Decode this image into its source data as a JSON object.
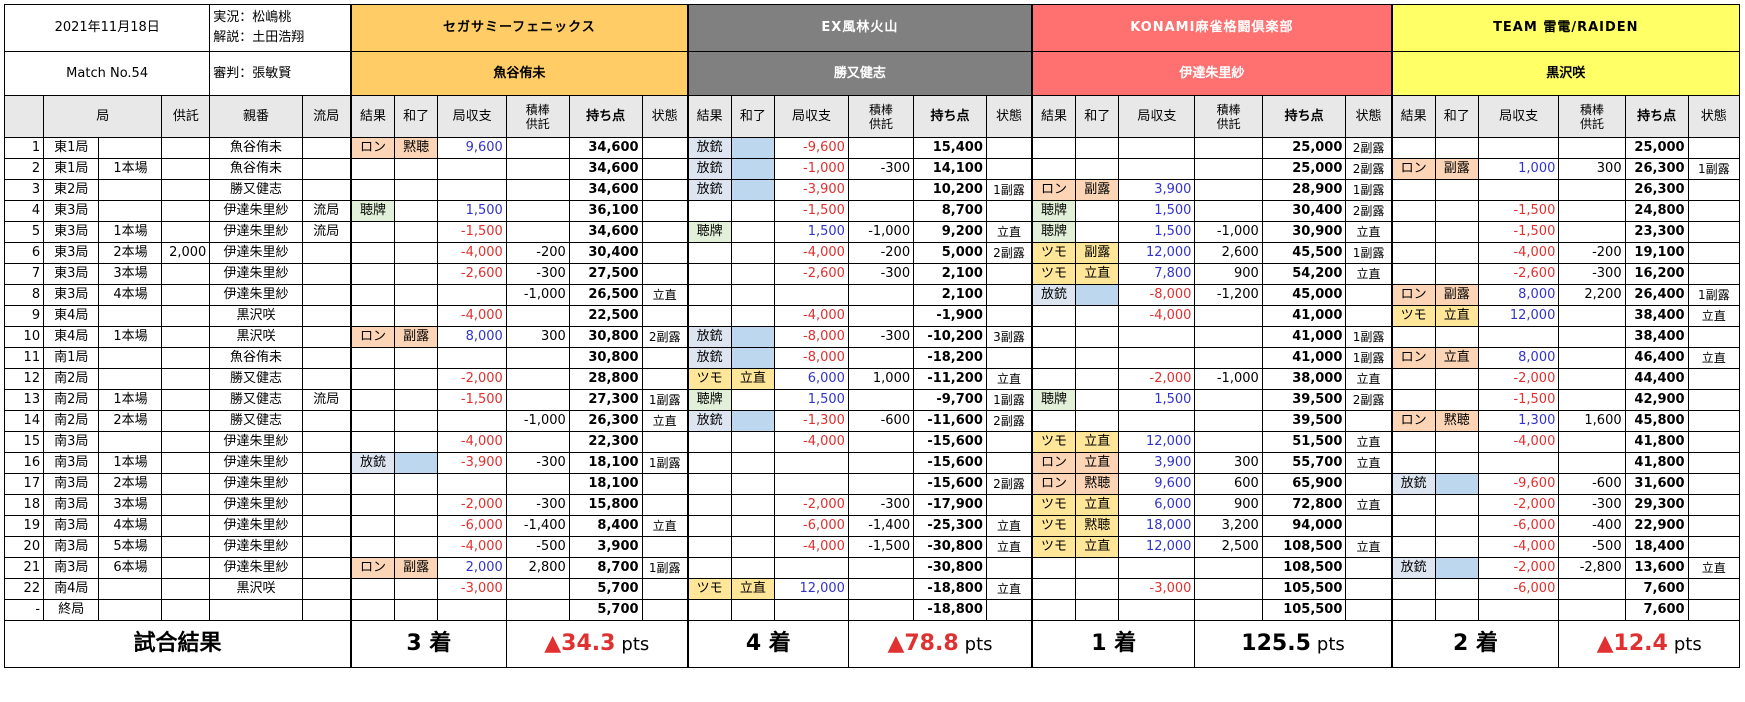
{
  "header": {
    "date": "2021年11月18日",
    "match_no": "Match No.54",
    "commentary": "実況：松嶋桃",
    "analysis": "解説：土田浩翔",
    "referee": "審判：張敏賢"
  },
  "teams": [
    {
      "name": "セガサミーフェニックス",
      "player": "魚谷侑未",
      "header_color": "#ffcc66",
      "player_color": "#ffcc66",
      "rank": "3 着",
      "score": "▲34.3",
      "unit": "pts"
    },
    {
      "name": "EX風林火山",
      "player": "勝又健志",
      "header_color": "#808080",
      "player_color": "#808080",
      "rank": "4 着",
      "score": "▲78.8",
      "unit": "pts"
    },
    {
      "name": "KONAMI麻雀格闘倶楽部",
      "player": "伊達朱里紗",
      "header_color": "#ff7070",
      "player_color": "#ff7070",
      "rank": "1 着",
      "score": "125.5",
      "unit": "pts"
    },
    {
      "name": "TEAM 雷電/RAIDEN",
      "player": "黒沢咲",
      "header_color": "#ffff66",
      "player_color": "#ffff66",
      "rank": "2 着",
      "score": "▲12.4",
      "unit": "pts"
    }
  ],
  "columns": {
    "kyoku": "局",
    "kyotaku": "供託",
    "oya": "親番",
    "ryukyoku": "流局",
    "result": "結果",
    "agari": "和了",
    "shushi": "局収支",
    "tsumibo": "積棒\n供託",
    "mochiten": "持ち点",
    "state": "状態"
  },
  "rows": [
    {
      "n": "1",
      "kyoku": "東1局",
      "honba": "",
      "kyotaku": "",
      "oya": "魚谷侑未",
      "ryu": "",
      "p": [
        [
          "ロン",
          "黙聴",
          "9,600",
          "",
          "34,600",
          ""
        ],
        [
          "放銃",
          "",
          "-9,600",
          "",
          "15,400",
          ""
        ],
        [
          "",
          "",
          "",
          "",
          "25,000",
          "2副露"
        ],
        [
          "",
          "",
          "",
          "",
          "25,000",
          ""
        ]
      ]
    },
    {
      "n": "2",
      "kyoku": "東1局",
      "honba": "1本場",
      "kyotaku": "",
      "oya": "魚谷侑未",
      "ryu": "",
      "p": [
        [
          "",
          "",
          "",
          "",
          "34,600",
          ""
        ],
        [
          "放銃",
          "",
          "-1,000",
          "-300",
          "14,100",
          ""
        ],
        [
          "",
          "",
          "",
          "",
          "25,000",
          "2副露"
        ],
        [
          "ロン",
          "副露",
          "1,000",
          "300",
          "26,300",
          "1副露"
        ]
      ]
    },
    {
      "n": "3",
      "kyoku": "東2局",
      "honba": "",
      "kyotaku": "",
      "oya": "勝又健志",
      "ryu": "",
      "p": [
        [
          "",
          "",
          "",
          "",
          "34,600",
          ""
        ],
        [
          "放銃",
          "",
          "-3,900",
          "",
          "10,200",
          "1副露"
        ],
        [
          "ロン",
          "副露",
          "3,900",
          "",
          "28,900",
          "1副露"
        ],
        [
          "",
          "",
          "",
          "",
          "26,300",
          ""
        ]
      ]
    },
    {
      "n": "4",
      "kyoku": "東3局",
      "honba": "",
      "kyotaku": "",
      "oya": "伊達朱里紗",
      "ryu": "流局",
      "p": [
        [
          "聴牌",
          "",
          "1,500",
          "",
          "36,100",
          ""
        ],
        [
          "",
          "",
          "-1,500",
          "",
          "8,700",
          ""
        ],
        [
          "聴牌",
          "",
          "1,500",
          "",
          "30,400",
          "2副露"
        ],
        [
          "",
          "",
          "-1,500",
          "",
          "24,800",
          ""
        ]
      ]
    },
    {
      "n": "5",
      "kyoku": "東3局",
      "honba": "1本場",
      "kyotaku": "",
      "oya": "伊達朱里紗",
      "ryu": "流局",
      "p": [
        [
          "",
          "",
          "-1,500",
          "",
          "34,600",
          ""
        ],
        [
          "聴牌",
          "",
          "1,500",
          "-1,000",
          "9,200",
          "立直"
        ],
        [
          "聴牌",
          "",
          "1,500",
          "-1,000",
          "30,900",
          "立直"
        ],
        [
          "",
          "",
          "-1,500",
          "",
          "23,300",
          ""
        ]
      ]
    },
    {
      "n": "6",
      "kyoku": "東3局",
      "honba": "2本場",
      "kyotaku": "2,000",
      "oya": "伊達朱里紗",
      "ryu": "",
      "p": [
        [
          "",
          "",
          "-4,000",
          "-200",
          "30,400",
          ""
        ],
        [
          "",
          "",
          "-4,000",
          "-200",
          "5,000",
          "2副露"
        ],
        [
          "ツモ",
          "副露",
          "12,000",
          "2,600",
          "45,500",
          "1副露"
        ],
        [
          "",
          "",
          "-4,000",
          "-200",
          "19,100",
          ""
        ]
      ]
    },
    {
      "n": "7",
      "kyoku": "東3局",
      "honba": "3本場",
      "kyotaku": "",
      "oya": "伊達朱里紗",
      "ryu": "",
      "p": [
        [
          "",
          "",
          "-2,600",
          "-300",
          "27,500",
          ""
        ],
        [
          "",
          "",
          "-2,600",
          "-300",
          "2,100",
          ""
        ],
        [
          "ツモ",
          "立直",
          "7,800",
          "900",
          "54,200",
          "立直"
        ],
        [
          "",
          "",
          "-2,600",
          "-300",
          "16,200",
          ""
        ]
      ]
    },
    {
      "n": "8",
      "kyoku": "東3局",
      "honba": "4本場",
      "kyotaku": "",
      "oya": "伊達朱里紗",
      "ryu": "",
      "p": [
        [
          "",
          "",
          "",
          "-1,000",
          "26,500",
          "立直"
        ],
        [
          "",
          "",
          "",
          "",
          "2,100",
          ""
        ],
        [
          "放銃",
          "",
          "-8,000",
          "-1,200",
          "45,000",
          ""
        ],
        [
          "ロン",
          "副露",
          "8,000",
          "2,200",
          "26,400",
          "1副露"
        ]
      ]
    },
    {
      "n": "9",
      "kyoku": "東4局",
      "honba": "",
      "kyotaku": "",
      "oya": "黒沢咲",
      "ryu": "",
      "p": [
        [
          "",
          "",
          "-4,000",
          "",
          "22,500",
          ""
        ],
        [
          "",
          "",
          "-4,000",
          "",
          "-1,900",
          ""
        ],
        [
          "",
          "",
          "-4,000",
          "",
          "41,000",
          ""
        ],
        [
          "ツモ",
          "立直",
          "12,000",
          "",
          "38,400",
          "立直"
        ]
      ]
    },
    {
      "n": "10",
      "kyoku": "東4局",
      "honba": "1本場",
      "kyotaku": "",
      "oya": "黒沢咲",
      "ryu": "",
      "p": [
        [
          "ロン",
          "副露",
          "8,000",
          "300",
          "30,800",
          "2副露"
        ],
        [
          "放銃",
          "",
          "-8,000",
          "-300",
          "-10,200",
          "3副露"
        ],
        [
          "",
          "",
          "",
          "",
          "41,000",
          "1副露"
        ],
        [
          "",
          "",
          "",
          "",
          "38,400",
          ""
        ]
      ]
    },
    {
      "n": "11",
      "kyoku": "南1局",
      "honba": "",
      "kyotaku": "",
      "oya": "魚谷侑未",
      "ryu": "",
      "p": [
        [
          "",
          "",
          "",
          "",
          "30,800",
          ""
        ],
        [
          "放銃",
          "",
          "-8,000",
          "",
          "-18,200",
          ""
        ],
        [
          "",
          "",
          "",
          "",
          "41,000",
          "1副露"
        ],
        [
          "ロン",
          "立直",
          "8,000",
          "",
          "46,400",
          "立直"
        ]
      ]
    },
    {
      "n": "12",
      "kyoku": "南2局",
      "honba": "",
      "kyotaku": "",
      "oya": "勝又健志",
      "ryu": "",
      "p": [
        [
          "",
          "",
          "-2,000",
          "",
          "28,800",
          ""
        ],
        [
          "ツモ",
          "立直",
          "6,000",
          "1,000",
          "-11,200",
          "立直"
        ],
        [
          "",
          "",
          "-2,000",
          "-1,000",
          "38,000",
          "立直"
        ],
        [
          "",
          "",
          "-2,000",
          "",
          "44,400",
          ""
        ]
      ]
    },
    {
      "n": "13",
      "kyoku": "南2局",
      "honba": "1本場",
      "kyotaku": "",
      "oya": "勝又健志",
      "ryu": "流局",
      "p": [
        [
          "",
          "",
          "-1,500",
          "",
          "27,300",
          "1副露"
        ],
        [
          "聴牌",
          "",
          "1,500",
          "",
          "-9,700",
          "1副露"
        ],
        [
          "聴牌",
          "",
          "1,500",
          "",
          "39,500",
          "2副露"
        ],
        [
          "",
          "",
          "-1,500",
          "",
          "42,900",
          ""
        ]
      ]
    },
    {
      "n": "14",
      "kyoku": "南2局",
      "honba": "2本場",
      "kyotaku": "",
      "oya": "勝又健志",
      "ryu": "",
      "p": [
        [
          "",
          "",
          "",
          "-1,000",
          "26,300",
          "立直"
        ],
        [
          "放銃",
          "",
          "-1,300",
          "-600",
          "-11,600",
          "2副露"
        ],
        [
          "",
          "",
          "",
          "",
          "39,500",
          ""
        ],
        [
          "ロン",
          "黙聴",
          "1,300",
          "1,600",
          "45,800",
          ""
        ]
      ]
    },
    {
      "n": "15",
      "kyoku": "南3局",
      "honba": "",
      "kyotaku": "",
      "oya": "伊達朱里紗",
      "ryu": "",
      "p": [
        [
          "",
          "",
          "-4,000",
          "",
          "22,300",
          ""
        ],
        [
          "",
          "",
          "-4,000",
          "",
          "-15,600",
          ""
        ],
        [
          "ツモ",
          "立直",
          "12,000",
          "",
          "51,500",
          "立直"
        ],
        [
          "",
          "",
          "-4,000",
          "",
          "41,800",
          ""
        ]
      ]
    },
    {
      "n": "16",
      "kyoku": "南3局",
      "honba": "1本場",
      "kyotaku": "",
      "oya": "伊達朱里紗",
      "ryu": "",
      "p": [
        [
          "放銃",
          "",
          "-3,900",
          "-300",
          "18,100",
          "1副露"
        ],
        [
          "",
          "",
          "",
          "",
          "-15,600",
          ""
        ],
        [
          "ロン",
          "立直",
          "3,900",
          "300",
          "55,700",
          "立直"
        ],
        [
          "",
          "",
          "",
          "",
          "41,800",
          ""
        ]
      ]
    },
    {
      "n": "17",
      "kyoku": "南3局",
      "honba": "2本場",
      "kyotaku": "",
      "oya": "伊達朱里紗",
      "ryu": "",
      "p": [
        [
          "",
          "",
          "",
          "",
          "18,100",
          ""
        ],
        [
          "",
          "",
          "",
          "",
          "-15,600",
          "2副露"
        ],
        [
          "ロン",
          "黙聴",
          "9,600",
          "600",
          "65,900",
          ""
        ],
        [
          "放銃",
          "",
          "-9,600",
          "-600",
          "31,600",
          ""
        ]
      ]
    },
    {
      "n": "18",
      "kyoku": "南3局",
      "honba": "3本場",
      "kyotaku": "",
      "oya": "伊達朱里紗",
      "ryu": "",
      "p": [
        [
          "",
          "",
          "-2,000",
          "-300",
          "15,800",
          ""
        ],
        [
          "",
          "",
          "-2,000",
          "-300",
          "-17,900",
          ""
        ],
        [
          "ツモ",
          "立直",
          "6,000",
          "900",
          "72,800",
          "立直"
        ],
        [
          "",
          "",
          "-2,000",
          "-300",
          "29,300",
          ""
        ]
      ]
    },
    {
      "n": "19",
      "kyoku": "南3局",
      "honba": "4本場",
      "kyotaku": "",
      "oya": "伊達朱里紗",
      "ryu": "",
      "p": [
        [
          "",
          "",
          "-6,000",
          "-1,400",
          "8,400",
          "立直"
        ],
        [
          "",
          "",
          "-6,000",
          "-1,400",
          "-25,300",
          "立直"
        ],
        [
          "ツモ",
          "黙聴",
          "18,000",
          "3,200",
          "94,000",
          ""
        ],
        [
          "",
          "",
          "-6,000",
          "-400",
          "22,900",
          ""
        ]
      ]
    },
    {
      "n": "20",
      "kyoku": "南3局",
      "honba": "5本場",
      "kyotaku": "",
      "oya": "伊達朱里紗",
      "ryu": "",
      "p": [
        [
          "",
          "",
          "-4,000",
          "-500",
          "3,900",
          ""
        ],
        [
          "",
          "",
          "-4,000",
          "-1,500",
          "-30,800",
          "立直"
        ],
        [
          "ツモ",
          "立直",
          "12,000",
          "2,500",
          "108,500",
          "立直"
        ],
        [
          "",
          "",
          "-4,000",
          "-500",
          "18,400",
          ""
        ]
      ]
    },
    {
      "n": "21",
      "kyoku": "南3局",
      "honba": "6本場",
      "kyotaku": "",
      "oya": "伊達朱里紗",
      "ryu": "",
      "p": [
        [
          "ロン",
          "副露",
          "2,000",
          "2,800",
          "8,700",
          "1副露"
        ],
        [
          "",
          "",
          "",
          "",
          "-30,800",
          ""
        ],
        [
          "",
          "",
          "",
          "",
          "108,500",
          ""
        ],
        [
          "放銃",
          "",
          "-2,000",
          "-2,800",
          "13,600",
          "立直"
        ]
      ]
    },
    {
      "n": "22",
      "kyoku": "南4局",
      "honba": "",
      "kyotaku": "",
      "oya": "黒沢咲",
      "ryu": "",
      "p": [
        [
          "",
          "",
          "-3,000",
          "",
          "5,700",
          ""
        ],
        [
          "ツモ",
          "立直",
          "12,000",
          "",
          "-18,800",
          "立直"
        ],
        [
          "",
          "",
          "-3,000",
          "",
          "105,500",
          ""
        ],
        [
          "",
          "",
          "-6,000",
          "",
          "7,600",
          ""
        ]
      ]
    },
    {
      "n": "-",
      "kyoku": "終局",
      "honba": "",
      "kyotaku": "",
      "oya": "",
      "ryu": "",
      "p": [
        [
          "",
          "",
          "",
          "",
          "5,700",
          ""
        ],
        [
          "",
          "",
          "",
          "",
          "-18,800",
          ""
        ],
        [
          "",
          "",
          "",
          "",
          "105,500",
          ""
        ],
        [
          "",
          "",
          "",
          "",
          "7,600",
          ""
        ]
      ]
    }
  ],
  "footer": {
    "label": "試合結果"
  }
}
